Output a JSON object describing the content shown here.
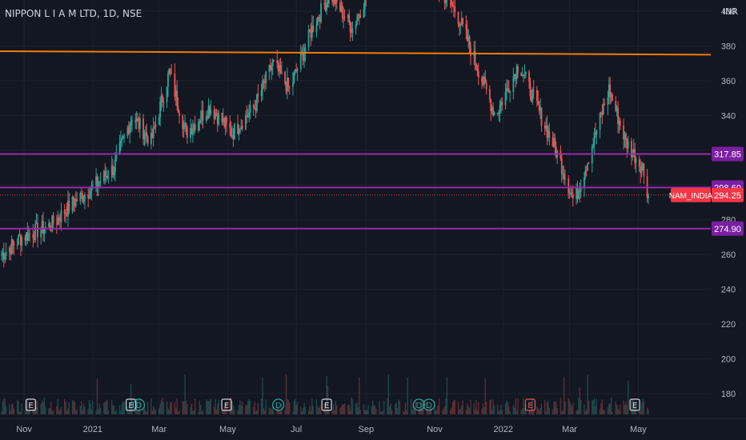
{
  "header": {
    "symbol_title": "NIPPON L I A M LTD, 1D, NSE",
    "currency": "INR"
  },
  "colors": {
    "background": "#131722",
    "up": "#26a69a",
    "down": "#ef5350",
    "grid": "#1e222d",
    "axis_text": "#b2b5be",
    "horizontal_line": "#9c27b0",
    "trend_line": "#f57c00",
    "label_bg": "#7b1fa2",
    "price_label_bg": "#f23645"
  },
  "chart_data": {
    "type": "candlestick",
    "y_axis": {
      "ticks": [
        180,
        200,
        220,
        240,
        260,
        280,
        300,
        320,
        340,
        360,
        380,
        400
      ],
      "visible_min": 166,
      "visible_max": 405
    },
    "x_axis": {
      "ticks": [
        "Nov",
        "2021",
        "Mar",
        "May",
        "Jul",
        "Sep",
        "Nov",
        "2022",
        "Mar",
        "May"
      ],
      "start": "2020-10-12",
      "end": "2022-05-10"
    },
    "path": [
      [
        "2020-10-12",
        260
      ],
      [
        "2020-10-30",
        270
      ],
      [
        "2020-11-25",
        277
      ],
      [
        "2020-12-15",
        290
      ],
      [
        "2020-12-31",
        298
      ],
      [
        "2021-01-20",
        310
      ],
      [
        "2021-02-05",
        340
      ],
      [
        "2021-02-22",
        325
      ],
      [
        "2021-03-10",
        365
      ],
      [
        "2021-03-25",
        330
      ],
      [
        "2021-04-15",
        345
      ],
      [
        "2021-05-05",
        330
      ],
      [
        "2021-05-25",
        345
      ],
      [
        "2021-06-10",
        370
      ],
      [
        "2021-06-25",
        355
      ],
      [
        "2021-07-15",
        390
      ],
      [
        "2021-07-31",
        410
      ],
      [
        "2021-08-20",
        390
      ],
      [
        "2021-09-05",
        415
      ],
      [
        "2021-10-15",
        430
      ],
      [
        "2021-11-20",
        400
      ],
      [
        "2021-12-05",
        375
      ],
      [
        "2021-12-25",
        340
      ],
      [
        "2022-01-15",
        370
      ],
      [
        "2022-01-31",
        345
      ],
      [
        "2022-02-20",
        315
      ],
      [
        "2022-03-05",
        290
      ],
      [
        "2022-03-15",
        310
      ],
      [
        "2022-04-05",
        355
      ],
      [
        "2022-04-20",
        325
      ],
      [
        "2022-05-05",
        310
      ],
      [
        "2022-05-10",
        294
      ]
    ],
    "horizontal_lines": [
      {
        "label": "317.85",
        "value": 317.85
      },
      {
        "label": "298.60",
        "value": 298.6
      },
      {
        "label": "274.90",
        "value": 274.9
      }
    ],
    "trend_line": {
      "start": [
        "2020-10-12",
        377
      ],
      "end": [
        "2022-05-10",
        375
      ]
    },
    "last_price": {
      "name": "NAM_INDIA",
      "label": "294.25",
      "value": 294.25
    },
    "events": [
      {
        "letter": "E",
        "kind": "earnings",
        "date": "2020-11-07"
      },
      {
        "letter": "E",
        "kind": "earnings",
        "date": "2021-02-04"
      },
      {
        "letter": "D",
        "kind": "dividend",
        "date": "2021-02-11"
      },
      {
        "letter": "E",
        "kind": "earnings",
        "date": "2021-04-30"
      },
      {
        "letter": "D",
        "kind": "dividend",
        "date": "2021-06-15"
      },
      {
        "letter": "E",
        "kind": "earnings",
        "date": "2021-07-28"
      },
      {
        "letter": "D",
        "kind": "dividend",
        "date": "2021-10-18"
      },
      {
        "letter": "D",
        "kind": "dividend",
        "date": "2021-10-27"
      },
      {
        "letter": "E",
        "kind": "earnings-negative",
        "date": "2022-01-25"
      },
      {
        "letter": "E",
        "kind": "earnings",
        "date": "2022-04-28"
      }
    ]
  }
}
